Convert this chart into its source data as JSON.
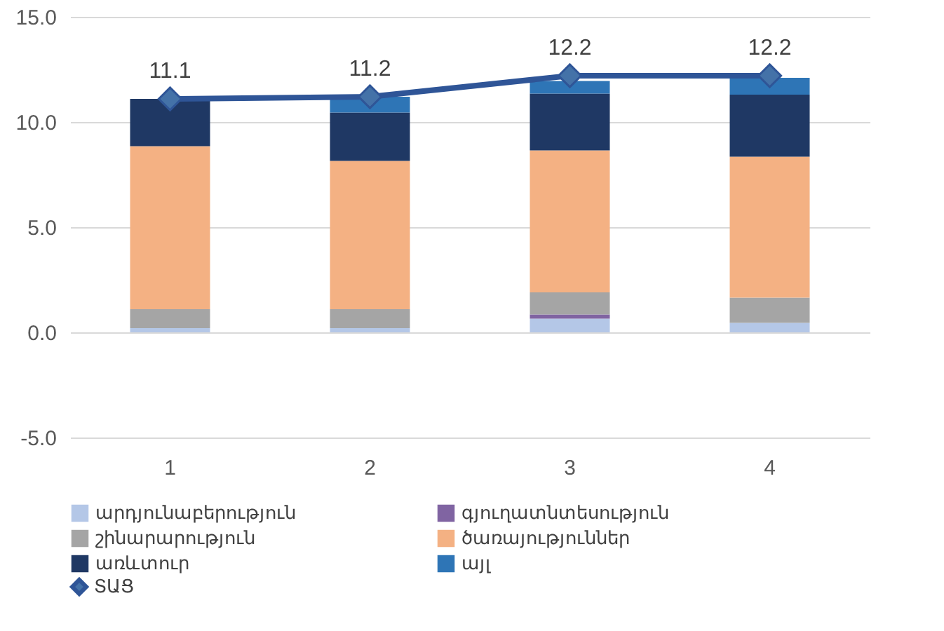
{
  "chart_data": {
    "type": "bar",
    "stacked": true,
    "categories": [
      "1",
      "2",
      "3",
      "4"
    ],
    "series": [
      {
        "name": "արդյունաբերություն",
        "color": "#b4c7e7",
        "values": [
          0.2,
          0.2,
          0.65,
          0.45
        ]
      },
      {
        "name": "գյուղատնտեսություն",
        "color": "#8064a2",
        "values": [
          0,
          0,
          0.2,
          0
        ]
      },
      {
        "name": "շինարարություն",
        "color": "#a5a5a5",
        "values": [
          0.9,
          0.9,
          1.05,
          1.2
        ]
      },
      {
        "name": "ծառայություններ",
        "color": "#f4b183",
        "values": [
          7.75,
          7.05,
          6.75,
          6.7
        ]
      },
      {
        "name": "առևտուր",
        "color": "#1f3864",
        "values": [
          2.25,
          2.3,
          2.7,
          2.95
        ]
      },
      {
        "name": "այլ",
        "color": "#2e75b6",
        "values": [
          0,
          0.75,
          0.6,
          0.8
        ]
      },
      {
        "name": "ՏԱՑ",
        "type": "line",
        "color": "#2f5597",
        "marker": "diamond",
        "data_labels": true,
        "values": [
          11.1,
          11.2,
          12.2,
          12.2
        ]
      }
    ],
    "ylim": [
      -5,
      15
    ],
    "yticks": [
      {
        "value": -5,
        "label": "-5.0"
      },
      {
        "value": 0,
        "label": "0.0"
      },
      {
        "value": 5,
        "label": "5.0"
      },
      {
        "value": 10,
        "label": "10.0"
      },
      {
        "value": 15,
        "label": "15.0"
      }
    ],
    "grid": "y",
    "legend": "bottom"
  }
}
